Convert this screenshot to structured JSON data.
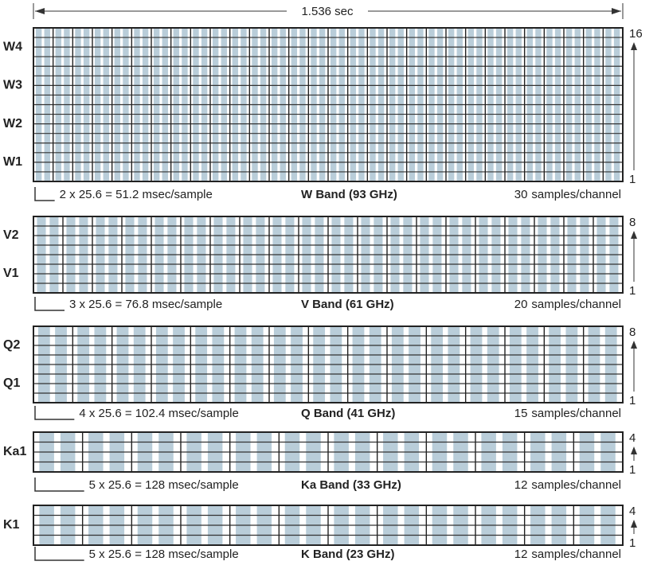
{
  "duration_label": "1.536 sec",
  "bands": [
    {
      "name": "W Band (93 GHz)",
      "channel_labels": [
        "W4",
        "W3",
        "W2",
        "W1"
      ],
      "sample_time": "2 x 25.6 = 51.2 msec/sample",
      "samples": 30,
      "samples_unit": "samples/channel",
      "channels_top": 16,
      "channels_bottom": 1
    },
    {
      "name": "V Band (61 GHz)",
      "channel_labels": [
        "V2",
        "V1"
      ],
      "sample_time": "3 x 25.6 = 76.8 msec/sample",
      "samples": 20,
      "samples_unit": "samples/channel",
      "channels_top": 8,
      "channels_bottom": 1
    },
    {
      "name": "Q Band (41 GHz)",
      "channel_labels": [
        "Q2",
        "Q1"
      ],
      "sample_time": "4 x 25.6 = 102.4 msec/sample",
      "samples": 15,
      "samples_unit": "samples/channel",
      "channels_top": 8,
      "channels_bottom": 1
    },
    {
      "name": "Ka Band (33 GHz)",
      "channel_labels": [
        "Ka1"
      ],
      "sample_time": "5 x 25.6 = 128 msec/sample",
      "samples": 12,
      "samples_unit": "samples/channel",
      "channels_top": 4,
      "channels_bottom": 1
    },
    {
      "name": "K Band (23 GHz)",
      "channel_labels": [
        "K1"
      ],
      "sample_time": "5 x 25.6 = 128 msec/sample",
      "samples": 12,
      "samples_unit": "samples/channel",
      "channels_top": 4,
      "channels_bottom": 1
    }
  ]
}
